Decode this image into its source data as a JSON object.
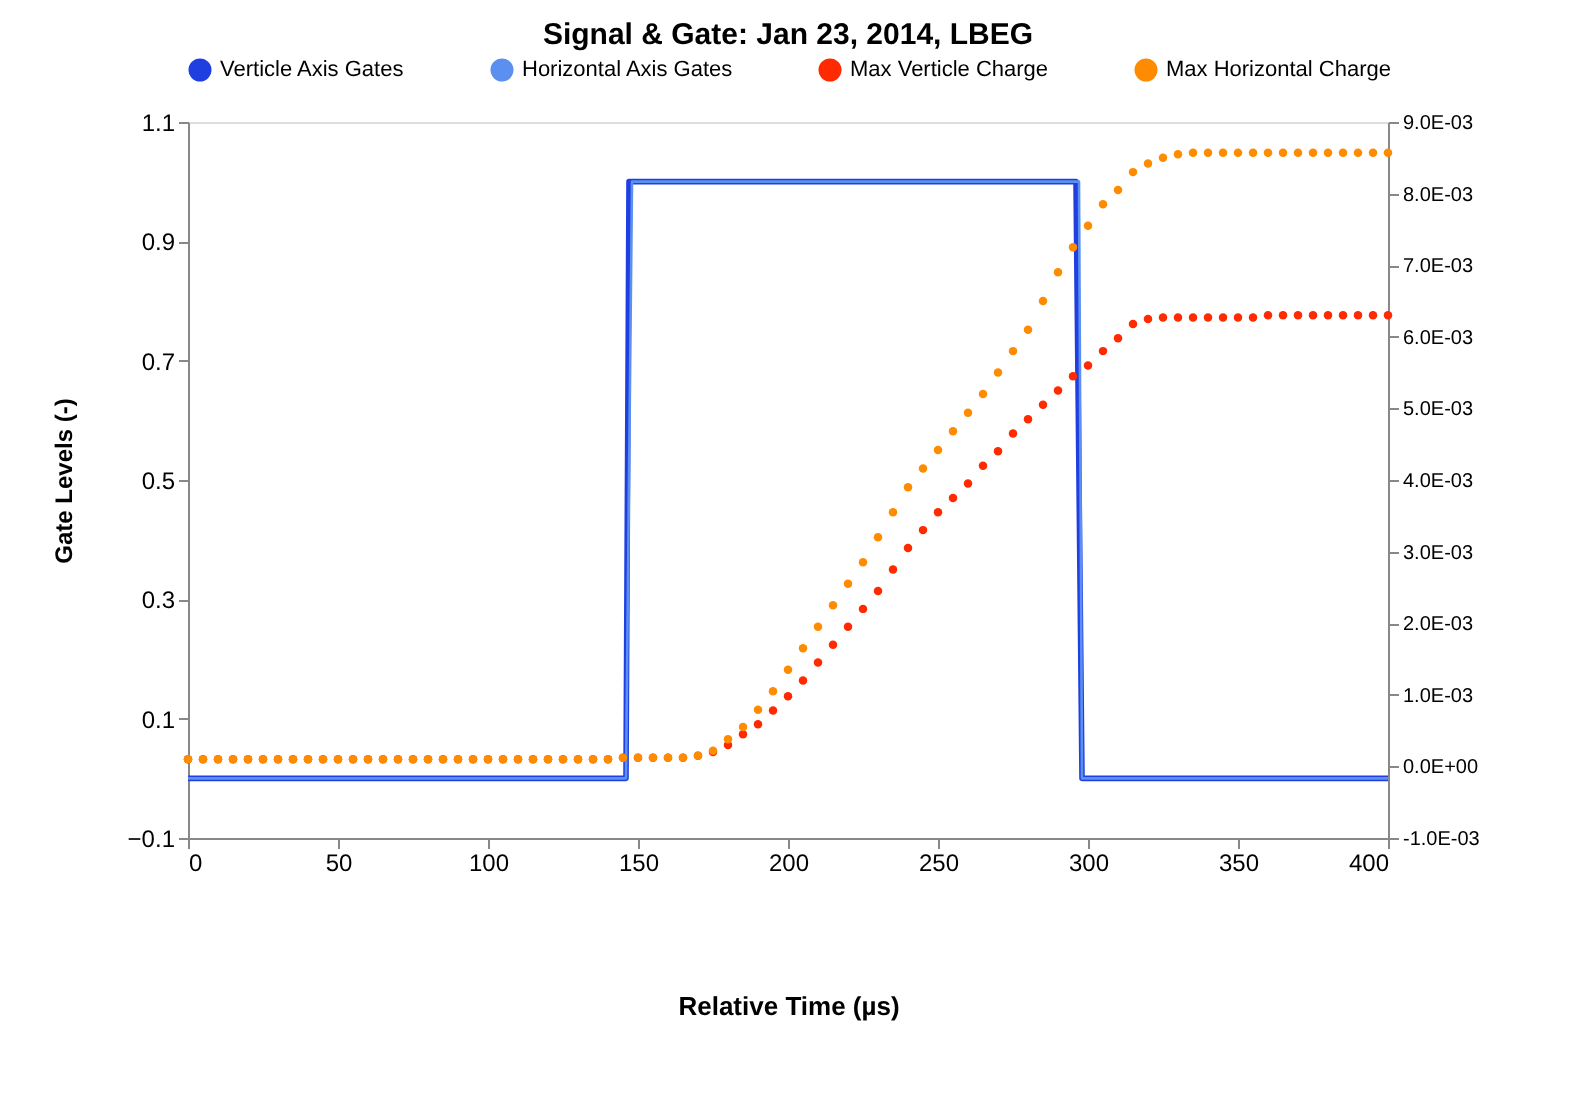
{
  "chart_data": {
    "type": "line",
    "title": "Signal & Gate:  Jan 23, 2014, LBEG",
    "xlabel": "Relative Time (µs)",
    "ylabel": "Gate Levels (-)",
    "xlim": [
      0,
      400
    ],
    "xticks": [
      0,
      50,
      100,
      150,
      200,
      250,
      300,
      350,
      400
    ],
    "ylim": [
      -0.1,
      1.1
    ],
    "yticks": [
      -0.1,
      0.1,
      0.3,
      0.5,
      0.7,
      0.9,
      1.1
    ],
    "y2lim": [
      -0.001,
      0.009
    ],
    "y2ticks": [
      {
        "value": -0.001,
        "label": "-1.0E-03"
      },
      {
        "value": 0,
        "label": "0.0E+00"
      },
      {
        "value": 0.001,
        "label": "1.0E-03"
      },
      {
        "value": 0.002,
        "label": "2.0E-03"
      },
      {
        "value": 0.003,
        "label": "3.0E-03"
      },
      {
        "value": 0.004,
        "label": "4.0E-03"
      },
      {
        "value": 0.005,
        "label": "5.0E-03"
      },
      {
        "value": 0.006,
        "label": "6.0E-03"
      },
      {
        "value": 0.007,
        "label": "7.0E-03"
      },
      {
        "value": 0.008,
        "label": "8.0E-03"
      },
      {
        "value": 0.009,
        "label": "9.0E-03"
      }
    ],
    "legend": "top",
    "grid": false,
    "series": [
      {
        "name": "Verticle Axis Gates",
        "type": "line",
        "line_style": "solid",
        "color": "#1f3fe0",
        "x": [
          0,
          146,
          147,
          296,
          298,
          400
        ],
        "values": [
          0,
          0,
          1,
          1,
          0,
          0
        ]
      },
      {
        "name": "Horizontal Axis Gates",
        "type": "line",
        "line_style": "solid",
        "color": "#5b8ff0",
        "x": [
          0,
          146,
          148,
          297,
          298,
          400
        ],
        "values": [
          0,
          0,
          1,
          1,
          0,
          0
        ]
      },
      {
        "name": "Max Verticle Charge",
        "type": "scatter",
        "marker": "circle",
        "axis": "y2",
        "color": "#ff2a00",
        "x": [
          0,
          5,
          10,
          15,
          20,
          25,
          30,
          35,
          40,
          45,
          50,
          55,
          60,
          65,
          70,
          75,
          80,
          85,
          90,
          95,
          100,
          105,
          110,
          115,
          120,
          125,
          130,
          135,
          140,
          145,
          150,
          155,
          160,
          165,
          170,
          175,
          180,
          185,
          190,
          195,
          200,
          205,
          210,
          215,
          220,
          225,
          230,
          235,
          240,
          245,
          250,
          255,
          260,
          265,
          270,
          275,
          280,
          285,
          290,
          295,
          300,
          305,
          310,
          315,
          320,
          325,
          330,
          335,
          340,
          345,
          350,
          355,
          360,
          365,
          370,
          375,
          380,
          385,
          390,
          395,
          400
        ],
        "values": [
          0.0001,
          0.0001,
          0.0001,
          0.0001,
          0.0001,
          0.0001,
          0.0001,
          0.0001,
          0.0001,
          0.0001,
          0.0001,
          0.0001,
          0.0001,
          0.0001,
          0.0001,
          0.0001,
          0.0001,
          0.0001,
          0.0001,
          0.0001,
          0.0001,
          0.0001,
          0.0001,
          0.0001,
          0.0001,
          0.0001,
          0.0001,
          0.0001,
          0.0001,
          0.00012,
          0.00012,
          0.00012,
          0.00012,
          0.00012,
          0.00015,
          0.0002,
          0.0003,
          0.00045,
          0.00059,
          0.00078,
          0.00098,
          0.0012,
          0.00145,
          0.0017,
          0.00195,
          0.0022,
          0.00245,
          0.00275,
          0.00305,
          0.0033,
          0.00355,
          0.00375,
          0.00395,
          0.0042,
          0.0044,
          0.00465,
          0.00485,
          0.00505,
          0.00525,
          0.00545,
          0.0056,
          0.0058,
          0.00598,
          0.00618,
          0.00625,
          0.00627,
          0.00627,
          0.00627,
          0.00627,
          0.00627,
          0.00627,
          0.00627,
          0.0063,
          0.0063,
          0.0063,
          0.0063,
          0.0063,
          0.0063,
          0.0063,
          0.0063,
          0.0063
        ]
      },
      {
        "name": "Max Horizontal Charge",
        "type": "scatter",
        "marker": "circle",
        "axis": "y2",
        "color": "#ff8c00",
        "x": [
          0,
          5,
          10,
          15,
          20,
          25,
          30,
          35,
          40,
          45,
          50,
          55,
          60,
          65,
          70,
          75,
          80,
          85,
          90,
          95,
          100,
          105,
          110,
          115,
          120,
          125,
          130,
          135,
          140,
          145,
          150,
          155,
          160,
          165,
          170,
          175,
          180,
          185,
          190,
          195,
          200,
          205,
          210,
          215,
          220,
          225,
          230,
          235,
          240,
          245,
          250,
          255,
          260,
          265,
          270,
          275,
          280,
          285,
          290,
          295,
          300,
          305,
          310,
          315,
          320,
          325,
          330,
          335,
          340,
          345,
          350,
          355,
          360,
          365,
          370,
          375,
          380,
          385,
          390,
          395,
          400
        ],
        "values": [
          0.0001,
          0.0001,
          0.0001,
          0.0001,
          0.0001,
          0.0001,
          0.0001,
          0.0001,
          0.0001,
          0.0001,
          0.0001,
          0.0001,
          0.0001,
          0.0001,
          0.0001,
          0.0001,
          0.0001,
          0.0001,
          0.0001,
          0.0001,
          0.0001,
          0.0001,
          0.0001,
          0.0001,
          0.0001,
          0.0001,
          0.0001,
          0.0001,
          0.0001,
          0.00012,
          0.00012,
          0.00012,
          0.00012,
          0.00012,
          0.00015,
          0.00022,
          0.00038,
          0.00055,
          0.00079,
          0.00105,
          0.00135,
          0.00165,
          0.00195,
          0.00225,
          0.00255,
          0.00285,
          0.0032,
          0.00355,
          0.0039,
          0.00416,
          0.00442,
          0.00468,
          0.00494,
          0.0052,
          0.0055,
          0.0058,
          0.0061,
          0.0065,
          0.0069,
          0.00725,
          0.00755,
          0.00785,
          0.00805,
          0.0083,
          0.00842,
          0.0085,
          0.00855,
          0.00857,
          0.00857,
          0.00857,
          0.00857,
          0.00857,
          0.00857,
          0.00857,
          0.00857,
          0.00857,
          0.00857,
          0.00857,
          0.00857,
          0.00857,
          0.00857
        ]
      }
    ]
  }
}
